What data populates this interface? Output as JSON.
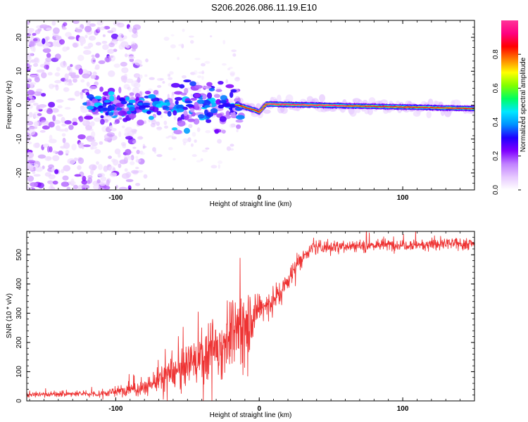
{
  "title": "S206.2026.086.11.19.E10",
  "chart_data": [
    {
      "type": "heatmap",
      "name": "spectrogram",
      "xlabel": "Height of straight line (km)",
      "ylabel": "Frequency (Hz)",
      "xlim": [
        -162,
        150
      ],
      "ylim": [
        -25,
        25
      ],
      "x_ticks": [
        -100,
        0,
        100
      ],
      "y_ticks": [
        20,
        10,
        0,
        -10,
        -20
      ],
      "colorbar": {
        "label": "Normalized spectral amplitude",
        "range": [
          0,
          1
        ],
        "ticks": [
          0.0,
          0.2,
          0.4,
          0.6,
          0.8
        ],
        "colors": [
          "#ffffff",
          "#e6c8ff",
          "#c080ff",
          "#8000ff",
          "#2000ff",
          "#0090ff",
          "#00e8ff",
          "#00ff60",
          "#80ff00",
          "#ffff00",
          "#ff8000",
          "#ff0000",
          "#ff0080",
          "#ff3399"
        ]
      },
      "ridge": {
        "description_points": [
          {
            "x": -120,
            "y": 0
          },
          {
            "x": -15,
            "y": 0
          },
          {
            "x": -3,
            "y": -1.5
          },
          {
            "x": 0,
            "y": -2
          },
          {
            "x": 5,
            "y": 0.3
          },
          {
            "x": 150,
            "y": -1
          }
        ]
      }
    },
    {
      "type": "line",
      "name": "snr",
      "xlabel": "Height of straight line (km)",
      "ylabel": "SNR (10 * v/v)",
      "xlim": [
        -162,
        150
      ],
      "ylim": [
        0,
        580
      ],
      "x_ticks": [
        -100,
        0,
        100
      ],
      "y_ticks": [
        0,
        100,
        200,
        300,
        400,
        500
      ],
      "color": "#ee3333",
      "envelope": [
        {
          "x": -162,
          "mean": 22,
          "noise": 7
        },
        {
          "x": -110,
          "mean": 25,
          "noise": 10
        },
        {
          "x": -95,
          "mean": 35,
          "noise": 18
        },
        {
          "x": -80,
          "mean": 45,
          "noise": 25
        },
        {
          "x": -65,
          "mean": 85,
          "noise": 45
        },
        {
          "x": -50,
          "mean": 120,
          "noise": 60
        },
        {
          "x": -35,
          "mean": 170,
          "noise": 90
        },
        {
          "x": -20,
          "mean": 220,
          "noise": 110
        },
        {
          "x": -10,
          "mean": 270,
          "noise": 120
        },
        {
          "x": -3,
          "mean": 300,
          "noise": 60
        },
        {
          "x": 5,
          "mean": 330,
          "noise": 40
        },
        {
          "x": 15,
          "mean": 370,
          "noise": 40
        },
        {
          "x": 25,
          "mean": 460,
          "noise": 30
        },
        {
          "x": 35,
          "mean": 520,
          "noise": 20
        },
        {
          "x": 50,
          "mean": 530,
          "noise": 18
        },
        {
          "x": 100,
          "mean": 535,
          "noise": 18
        },
        {
          "x": 150,
          "mean": 538,
          "noise": 18
        }
      ]
    }
  ]
}
